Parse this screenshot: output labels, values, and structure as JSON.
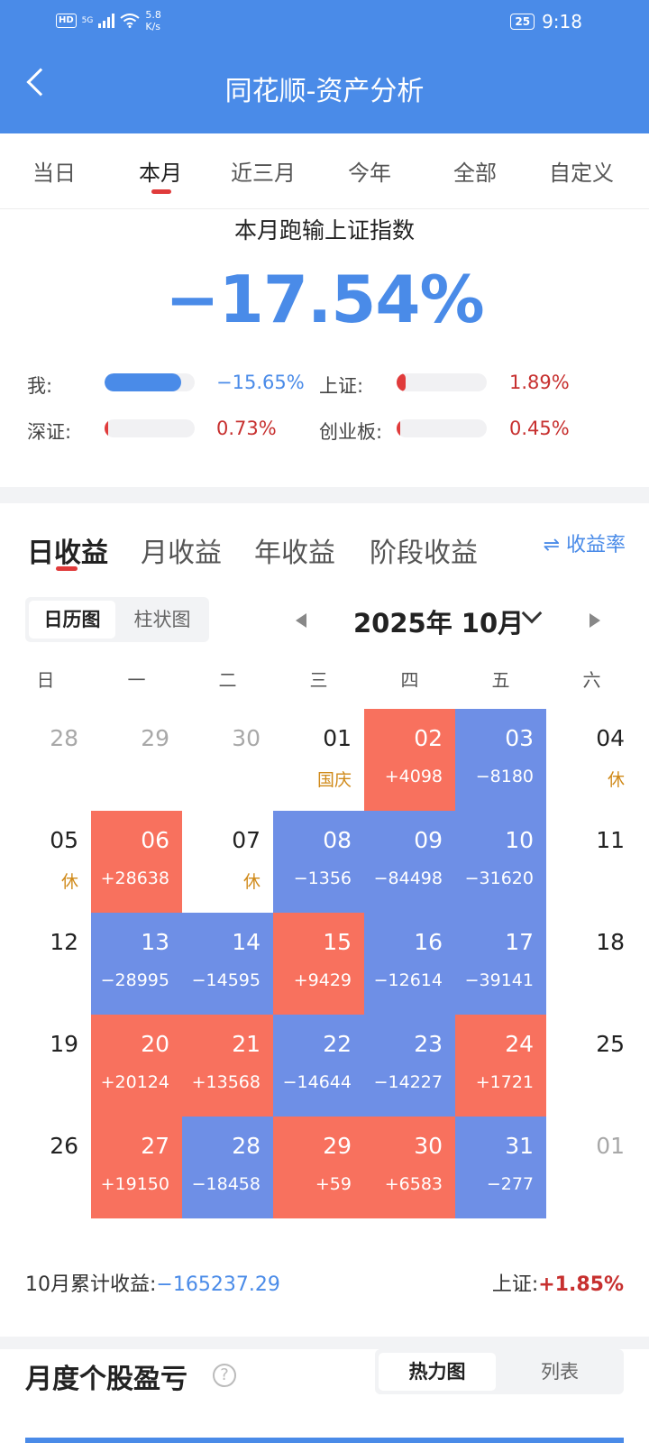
{
  "status_bar": {
    "hd": "HD",
    "network": "5G",
    "speed": "5.8",
    "speed_unit": "K/s",
    "battery": "25",
    "time": "9:18"
  },
  "header": {
    "title": "同花顺-资产分析"
  },
  "period_tabs": [
    "当日",
    "本月",
    "近三月",
    "今年",
    "全部",
    "自定义"
  ],
  "active_period_tab": "本月",
  "summary": {
    "title": "本月跑输上证指数",
    "value": "−17.54%",
    "compare": [
      {
        "label": "我:",
        "value": "−15.65%",
        "color": "blue",
        "fill": 0.85
      },
      {
        "label": "上证:",
        "value": "1.89%",
        "color": "red",
        "fill": 0.1
      },
      {
        "label": "深证:",
        "value": "0.73%",
        "color": "red",
        "fill": 0.04
      },
      {
        "label": "创业板:",
        "value": "0.45%",
        "color": "red",
        "fill": 0.03
      }
    ]
  },
  "earnings": {
    "tabs": [
      "日收益",
      "月收益",
      "年收益",
      "阶段收益"
    ],
    "active_tab": "日收益",
    "rate_toggle": "⇌ 收益率",
    "view_toggle": [
      "日历图",
      "柱状图"
    ],
    "active_view": "日历图",
    "month": "2025年 10月",
    "weekdays": [
      "日",
      "一",
      "二",
      "三",
      "四",
      "五",
      "六"
    ],
    "days": [
      {
        "day": "28",
        "type": "other"
      },
      {
        "day": "29",
        "type": "other"
      },
      {
        "day": "30",
        "type": "other"
      },
      {
        "day": "01",
        "type": "normal",
        "note": "国庆"
      },
      {
        "day": "02",
        "type": "up",
        "value": "+4098"
      },
      {
        "day": "03",
        "type": "down",
        "value": "−8180"
      },
      {
        "day": "04",
        "type": "normal",
        "note": "休"
      },
      {
        "day": "05",
        "type": "normal",
        "note": "休"
      },
      {
        "day": "06",
        "type": "up",
        "value": "+28638"
      },
      {
        "day": "07",
        "type": "normal",
        "note": "休"
      },
      {
        "day": "08",
        "type": "down",
        "value": "−1356"
      },
      {
        "day": "09",
        "type": "down",
        "value": "−84498"
      },
      {
        "day": "10",
        "type": "down",
        "value": "−31620"
      },
      {
        "day": "11",
        "type": "normal"
      },
      {
        "day": "12",
        "type": "normal"
      },
      {
        "day": "13",
        "type": "down",
        "value": "−28995"
      },
      {
        "day": "14",
        "type": "down",
        "value": "−14595"
      },
      {
        "day": "15",
        "type": "up",
        "value": "+9429"
      },
      {
        "day": "16",
        "type": "down",
        "value": "−12614"
      },
      {
        "day": "17",
        "type": "down",
        "value": "−39141"
      },
      {
        "day": "18",
        "type": "normal"
      },
      {
        "day": "19",
        "type": "normal"
      },
      {
        "day": "20",
        "type": "up",
        "value": "+20124"
      },
      {
        "day": "21",
        "type": "up",
        "value": "+13568"
      },
      {
        "day": "22",
        "type": "down",
        "value": "−14644"
      },
      {
        "day": "23",
        "type": "down",
        "value": "−14227"
      },
      {
        "day": "24",
        "type": "up",
        "value": "+1721"
      },
      {
        "day": "25",
        "type": "normal"
      },
      {
        "day": "26",
        "type": "normal"
      },
      {
        "day": "27",
        "type": "up",
        "value": "+19150"
      },
      {
        "day": "28",
        "type": "down",
        "value": "−18458"
      },
      {
        "day": "29",
        "type": "up",
        "value": "+59"
      },
      {
        "day": "30",
        "type": "up",
        "value": "+6583"
      },
      {
        "day": "31",
        "type": "down",
        "value": "−277"
      },
      {
        "day": "01",
        "type": "other"
      }
    ],
    "total_label": "10月累计收益:",
    "total_value": "−165237.29",
    "index_label": "上证:",
    "index_value": "+1.85%"
  },
  "stock_pnl": {
    "title": "月度个股盈亏",
    "help_icon": "?",
    "view_toggle": [
      "热力图",
      "列表"
    ],
    "active_view": "热力图"
  },
  "colors": {
    "header_bg": "#4a8be8",
    "gain": "#f8715e",
    "loss": "#6e8fe6",
    "accent_red": "#c7302f",
    "accent_blue": "#4a8be8"
  },
  "icons": [
    "back-arrow-icon",
    "signal-icon",
    "wifi-icon",
    "battery-icon",
    "swap-icon",
    "chevron-down-icon",
    "prev-triangle-icon",
    "next-triangle-icon",
    "help-icon"
  ]
}
